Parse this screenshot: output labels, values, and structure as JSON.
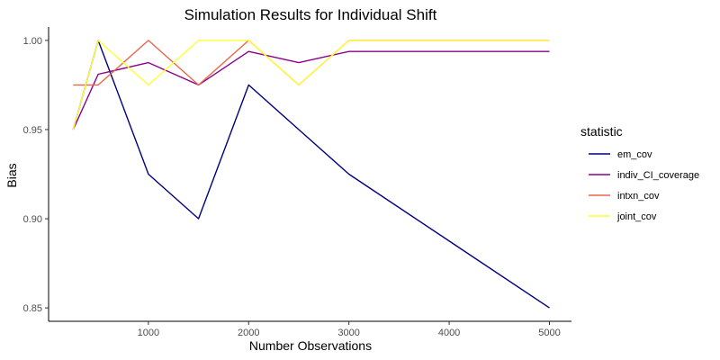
{
  "chart_data": {
    "type": "line",
    "title": "Simulation Results for Individual Shift",
    "xlabel": "Number Observations",
    "ylabel": "Bias",
    "xlim": [
      5,
      5220
    ],
    "ylim": [
      0.8425,
      1.0075
    ],
    "xticks": [
      1000,
      2000,
      3000,
      4000,
      5000
    ],
    "yticks": [
      0.85,
      0.9,
      0.95,
      1.0
    ],
    "ytick_labels": [
      "0.85",
      "0.90",
      "0.95",
      "1.00"
    ],
    "grid": false,
    "legend": {
      "title": "statistic",
      "position": "right"
    },
    "series": [
      {
        "name": "em_cov",
        "color": "#00007F",
        "x": [
          250,
          500,
          1000,
          1500,
          2000,
          2500,
          3000,
          5000
        ],
        "y": [
          0.95,
          1.0,
          0.925,
          0.9,
          0.975,
          0.95,
          0.925,
          0.85
        ]
      },
      {
        "name": "indiv_CI_coverage",
        "color": "#8B008B",
        "x": [
          250,
          500,
          1000,
          1500,
          2000,
          2500,
          3000,
          5000
        ],
        "y": [
          0.95,
          0.981,
          0.9875,
          0.975,
          0.9938,
          0.9875,
          0.9938,
          0.9938
        ]
      },
      {
        "name": "intxn_cov",
        "color": "#E8674A",
        "x": [
          250,
          500,
          1000,
          1500,
          2000,
          2500,
          3000,
          5000
        ],
        "y": [
          0.975,
          0.975,
          1.0,
          0.975,
          1.0,
          0.975,
          1.0,
          1.0
        ]
      },
      {
        "name": "joint_cov",
        "color": "#FFFF33",
        "x": [
          250,
          500,
          1000,
          1500,
          2000,
          2500,
          3000,
          5000
        ],
        "y": [
          0.95,
          1.0,
          0.975,
          1.0,
          1.0,
          0.975,
          1.0,
          1.0
        ]
      }
    ]
  }
}
